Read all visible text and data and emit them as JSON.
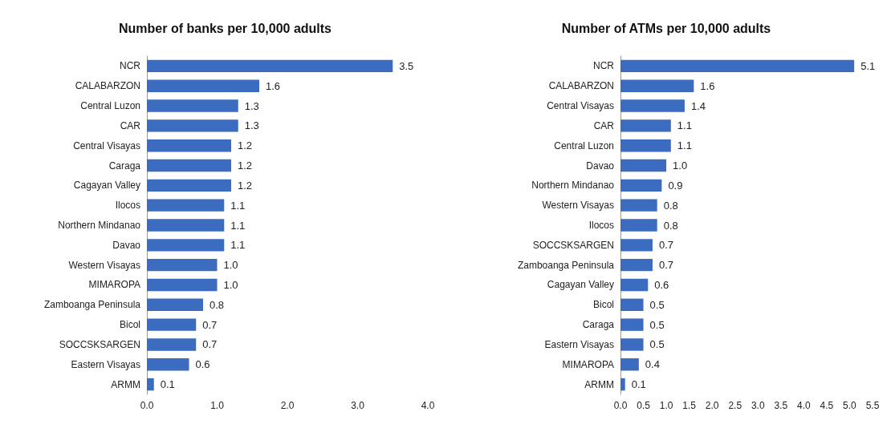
{
  "chart_data": [
    {
      "type": "bar",
      "orientation": "horizontal",
      "title": "Number of banks per 10,000 adults",
      "categories": [
        "NCR",
        "CALABARZON",
        "Central Luzon",
        "CAR",
        "Central Visayas",
        "Caraga",
        "Cagayan Valley",
        "Ilocos",
        "Northern Mindanao",
        "Davao",
        "Western Visayas",
        "MIMAROPA",
        "Zamboanga Peninsula",
        "Bicol",
        "SOCCSKSARGEN",
        "Eastern Visayas",
        "ARMM"
      ],
      "values": [
        3.5,
        1.6,
        1.3,
        1.3,
        1.2,
        1.2,
        1.2,
        1.1,
        1.1,
        1.1,
        1.0,
        1.0,
        0.8,
        0.7,
        0.7,
        0.6,
        0.1
      ],
      "value_labels": [
        "3.5",
        "1.6",
        "1.3",
        "1.3",
        "1.2",
        "1.2",
        "1.2",
        "1.1",
        "1.1",
        "1.1",
        "1.0",
        "1.0",
        "0.8",
        "0.7",
        "0.7",
        "0.6",
        "0.1"
      ],
      "color": "#3b6cc0",
      "xlim": [
        0,
        4
      ],
      "xticks": [
        {
          "value": 0,
          "label": "0.0"
        },
        {
          "value": 1,
          "label": "1.0"
        },
        {
          "value": 2,
          "label": "2.0"
        },
        {
          "value": 3,
          "label": "3.0"
        },
        {
          "value": 4,
          "label": "4.0"
        }
      ],
      "grid": false
    },
    {
      "type": "bar",
      "orientation": "horizontal",
      "title": "Number of ATMs per 10,000 adults",
      "categories": [
        "NCR",
        "CALABARZON",
        "Central Visayas",
        "CAR",
        "Central Luzon",
        "Davao",
        "Northern Mindanao",
        "Western Visayas",
        "Ilocos",
        "SOCCSKSARGEN",
        "Zamboanga Peninsula",
        "Cagayan Valley",
        "Bicol",
        "Caraga",
        "Eastern Visayas",
        "MIMAROPA",
        "ARMM"
      ],
      "values": [
        5.1,
        1.6,
        1.4,
        1.1,
        1.1,
        1.0,
        0.9,
        0.8,
        0.8,
        0.7,
        0.7,
        0.6,
        0.5,
        0.5,
        0.5,
        0.4,
        0.1
      ],
      "value_labels": [
        "5.1",
        "1.6",
        "1.4",
        "1.1",
        "1.1",
        "1.0",
        "0.9",
        "0.8",
        "0.8",
        "0.7",
        "0.7",
        "0.6",
        "0.5",
        "0.5",
        "0.5",
        "0.4",
        "0.1"
      ],
      "color": "#3b6cc0",
      "xlim": [
        0,
        5.5
      ],
      "xticks": [
        {
          "value": 0,
          "label": "0.0"
        },
        {
          "value": 0.5,
          "label": "0.5"
        },
        {
          "value": 1,
          "label": "1.0"
        },
        {
          "value": 1.5,
          "label": "1.5"
        },
        {
          "value": 2,
          "label": "2.0"
        },
        {
          "value": 2.5,
          "label": "2.5"
        },
        {
          "value": 3,
          "label": "3.0"
        },
        {
          "value": 3.5,
          "label": "3.5"
        },
        {
          "value": 4,
          "label": "4.0"
        },
        {
          "value": 4.5,
          "label": "4.5"
        },
        {
          "value": 5,
          "label": "5.0"
        },
        {
          "value": 5.5,
          "label": "5.5"
        }
      ],
      "grid": false
    }
  ]
}
